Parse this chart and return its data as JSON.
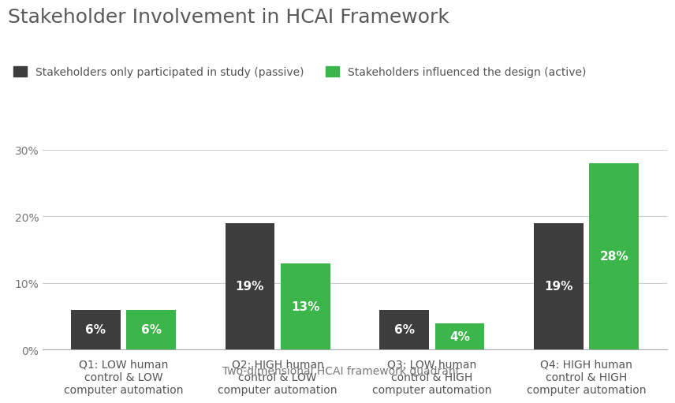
{
  "title": "Stakeholder Involvement in HCAI Framework",
  "legend_labels": [
    "Stakeholders only participated in study (passive)",
    "Stakeholders influenced the design (active)"
  ],
  "legend_colors": [
    "#3d3d3d",
    "#3cb54a"
  ],
  "categories": [
    "Q1: LOW human\ncontrol & LOW\ncomputer automation",
    "Q2: HIGH human\ncontrol & LOW\ncomputer automation",
    "Q3: LOW human\ncontrol & HIGH\ncomputer automation",
    "Q4: HIGH human\ncontrol & HIGH\ncomputer automation"
  ],
  "passive_values": [
    6,
    19,
    6,
    19
  ],
  "active_values": [
    6,
    13,
    4,
    28
  ],
  "passive_color": "#3d3d3d",
  "active_color": "#3cb54a",
  "bar_label_color": "#ffffff",
  "xlabel": "Two-dimensional HCAI framework quadrant",
  "ylabel": "",
  "ylim": [
    0,
    30
  ],
  "yticks": [
    0,
    10,
    20,
    30
  ],
  "ytick_labels": [
    "0%",
    "10%",
    "20%",
    "30%"
  ],
  "background_color": "#ffffff",
  "grid_color": "#cccccc",
  "title_color": "#595959",
  "xlabel_color": "#777777",
  "title_fontsize": 18,
  "label_fontsize": 10,
  "bar_label_fontsize": 11,
  "xlabel_fontsize": 10,
  "bar_width": 0.32,
  "bar_gap": 0.04
}
